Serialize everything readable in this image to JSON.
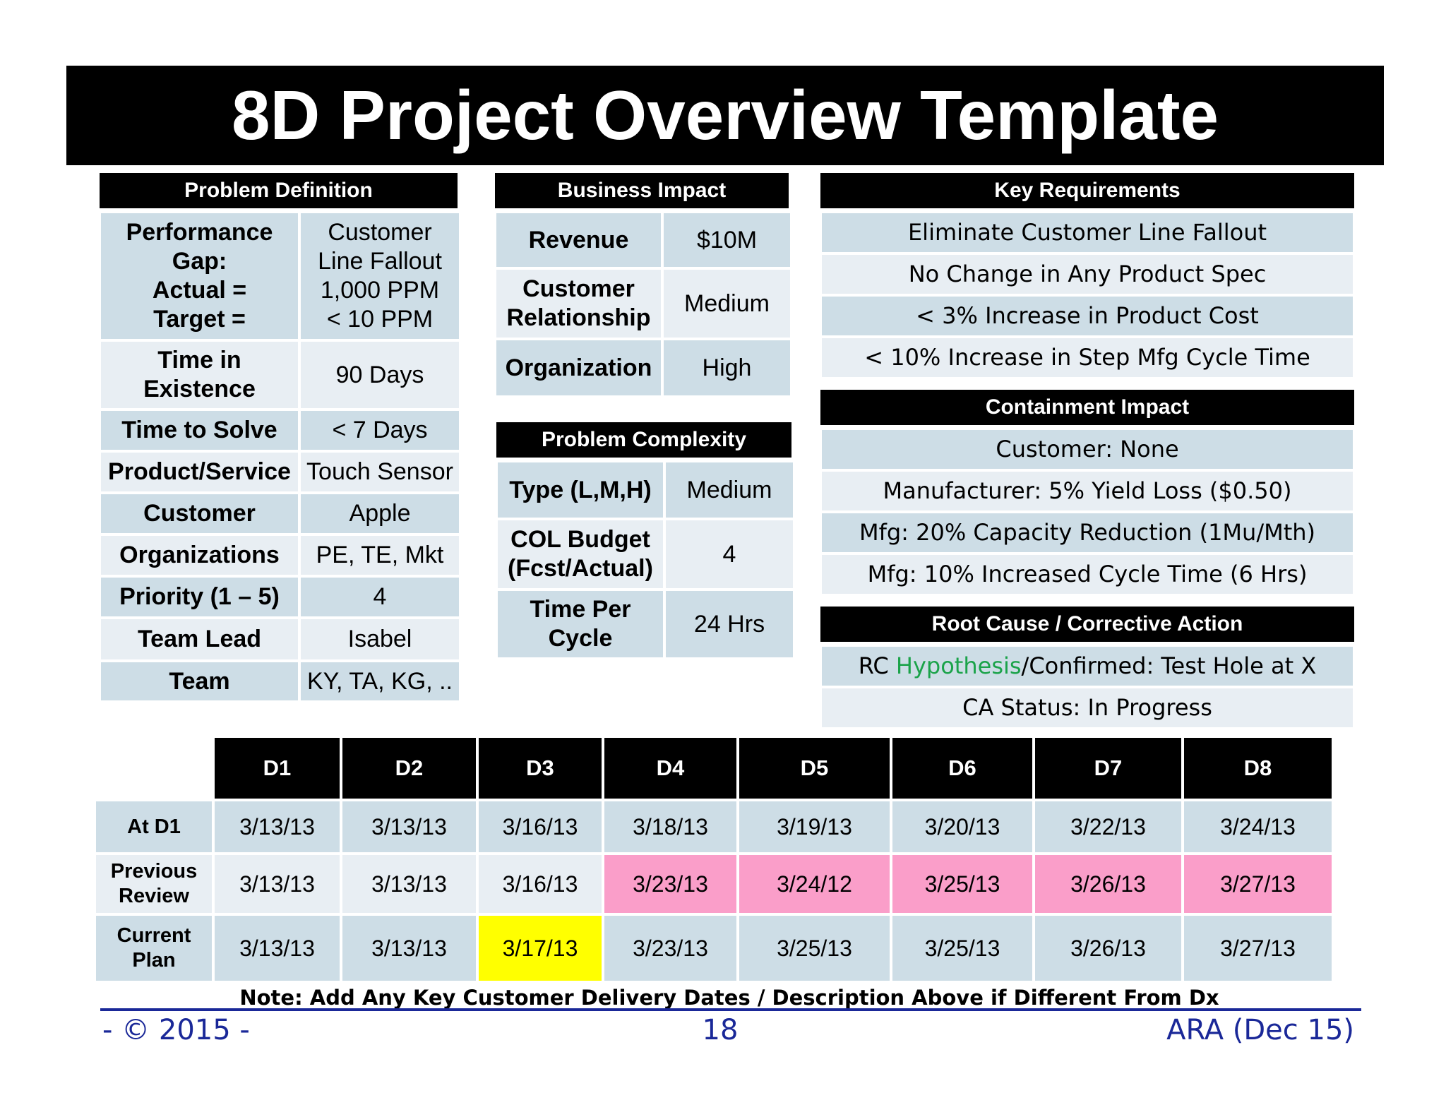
{
  "title": "8D Project Overview Template",
  "problem_definition": {
    "header": "Problem Definition",
    "rows": [
      {
        "label": "Performance Gap:\nActual =\nTarget =",
        "value": "Customer Line Fallout\n1,000 PPM\n< 10 PPM"
      },
      {
        "label": "Time in Existence",
        "value": "90 Days"
      },
      {
        "label": "Time to Solve",
        "value": "< 7 Days"
      },
      {
        "label": "Product/Service",
        "value": "Touch Sensor"
      },
      {
        "label": "Customer",
        "value": "Apple"
      },
      {
        "label": "Organizations",
        "value": "PE, TE, Mkt"
      },
      {
        "label": "Priority (1 – 5)",
        "value": "4"
      },
      {
        "label": "Team Lead",
        "value": "Isabel"
      },
      {
        "label": "Team",
        "value": "KY, TA, KG, .."
      }
    ]
  },
  "business_impact": {
    "header": "Business Impact",
    "rows": [
      {
        "label": "Revenue",
        "value": "$10M"
      },
      {
        "label": "Customer Relationship",
        "value": "Medium"
      },
      {
        "label": "Organization",
        "value": "High"
      }
    ]
  },
  "problem_complexity": {
    "header": "Problem Complexity",
    "rows": [
      {
        "label": "Type (L,M,H)",
        "value": "Medium"
      },
      {
        "label": "COL Budget (Fcst/Actual)",
        "value": "4"
      },
      {
        "label": "Time Per Cycle",
        "value": "24 Hrs"
      }
    ]
  },
  "key_requirements": {
    "header": "Key Requirements",
    "items": [
      "Eliminate Customer Line Fallout",
      "No Change in Any Product Spec",
      "< 3% Increase in Product Cost",
      "< 10% Increase in Step Mfg Cycle Time"
    ]
  },
  "containment_impact": {
    "header": "Containment Impact",
    "items": [
      "Customer: None",
      "Manufacturer: 5% Yield Loss ($0.50)",
      "Mfg: 20% Capacity Reduction (1Mu/Mth)",
      "Mfg: 10% Increased Cycle Time (6 Hrs)"
    ]
  },
  "root_cause": {
    "header": "Root Cause / Corrective Action",
    "rc_prefix": "RC ",
    "rc_hypothesis": "Hypothesis",
    "rc_suffix": "/Confirmed: Test Hole at X",
    "ca_status": "CA Status: In Progress"
  },
  "schedule": {
    "columns": [
      "D1",
      "D2",
      "D3",
      "D4",
      "D5",
      "D6",
      "D7",
      "D8"
    ],
    "rows": [
      {
        "label": "At D1",
        "values": [
          "3/13/13",
          "3/13/13",
          "3/16/13",
          "3/18/13",
          "3/19/13",
          "3/20/13",
          "3/22/13",
          "3/24/13"
        ]
      },
      {
        "label": "Previous Review",
        "values": [
          "3/13/13",
          "3/13/13",
          "3/16/13",
          "3/23/13",
          "3/24/12",
          "3/25/13",
          "3/26/13",
          "3/27/13"
        ]
      },
      {
        "label": "Current Plan",
        "values": [
          "3/13/13",
          "3/13/13",
          "3/17/13",
          "3/23/13",
          "3/25/13",
          "3/25/13",
          "3/26/13",
          "3/27/13"
        ]
      }
    ],
    "highlight_colors": {
      "late": "#fa9ec9",
      "changed": "#ffff00"
    }
  },
  "note": "Note: Add Any Key Customer Delivery Dates / Description Above if Different From Dx",
  "footer": {
    "left": "- © 2015 -",
    "center": "18",
    "right": "ARA (Dec 15)"
  }
}
